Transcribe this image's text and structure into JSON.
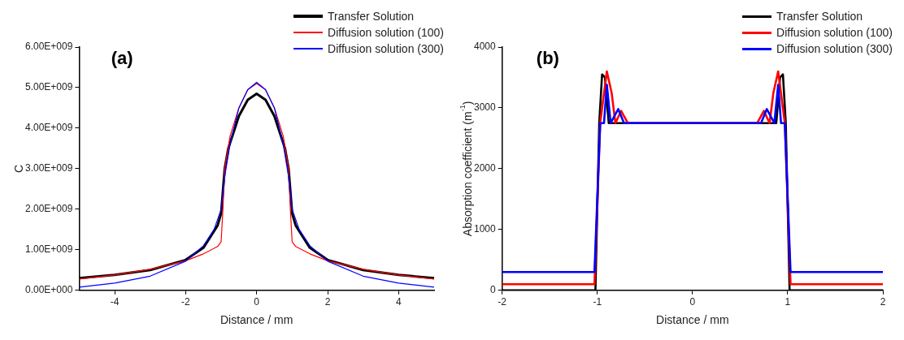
{
  "chart_data": [
    {
      "type": "line",
      "title": "(a)",
      "xlabel": "Distance / mm",
      "ylabel": "C",
      "legend": "top right",
      "grid": false,
      "marker": "none",
      "line_style": "solid",
      "xlim": [
        -5,
        5
      ],
      "xticks": [
        -4,
        -2,
        0,
        2,
        4
      ],
      "ylim": [
        0,
        6000000000.0
      ],
      "yticks": [
        {
          "value": 0,
          "label": "0.00E+000"
        },
        {
          "value": 1000000000.0,
          "label": "1.00E+009"
        },
        {
          "value": 2000000000.0,
          "label": "2.00E+009"
        },
        {
          "value": 3000000000.0,
          "label": "3.00E+009"
        },
        {
          "value": 4000000000.0,
          "label": "4.00E+009"
        },
        {
          "value": 5000000000.0,
          "label": "5.00E+009"
        },
        {
          "value": 6000000000.0,
          "label": "6.00E+009"
        }
      ],
      "series": [
        {
          "name": "Transfer Solution",
          "color": "#000000",
          "x": [
            -5,
            -4,
            -3,
            -2,
            -1.5,
            -1.1,
            -1,
            -0.9,
            -0.8,
            -0.5,
            -0.25,
            0,
            0.25,
            0.5,
            0.8,
            0.9,
            1,
            1.1,
            1.5,
            2,
            3,
            4,
            5
          ],
          "values": [
            300000000.0,
            380000000.0,
            500000000.0,
            750000000.0,
            1050000000.0,
            1600000000.0,
            1900000000.0,
            3000000000.0,
            3500000000.0,
            4300000000.0,
            4700000000.0,
            4850000000.0,
            4700000000.0,
            4300000000.0,
            3500000000.0,
            3000000000.0,
            1900000000.0,
            1600000000.0,
            1050000000.0,
            750000000.0,
            500000000.0,
            380000000.0,
            300000000.0
          ]
        },
        {
          "name": "Diffusion solution (100)",
          "color": "#ff0000",
          "x": [
            -5,
            -4,
            -3,
            -2,
            -1.5,
            -1.1,
            -1,
            -0.95,
            -0.9,
            -0.75,
            -0.5,
            -0.25,
            0,
            0.25,
            0.5,
            0.75,
            0.9,
            0.95,
            1,
            1.1,
            1.5,
            2,
            3,
            4,
            5
          ],
          "values": [
            280000000.0,
            380000000.0,
            520000000.0,
            730000000.0,
            900000000.0,
            1080000000.0,
            1200000000.0,
            2000000000.0,
            3000000000.0,
            3800000000.0,
            4500000000.0,
            4950000000.0,
            5100000000.0,
            4950000000.0,
            4500000000.0,
            3800000000.0,
            3000000000.0,
            2000000000.0,
            1200000000.0,
            1080000000.0,
            900000000.0,
            730000000.0,
            520000000.0,
            380000000.0,
            280000000.0
          ]
        },
        {
          "name": "Diffusion solution (300)",
          "color": "#0000ff",
          "x": [
            -5,
            -4,
            -3,
            -2,
            -1.5,
            -1.2,
            -1,
            -0.9,
            -0.75,
            -0.5,
            -0.25,
            0,
            0.25,
            0.5,
            0.75,
            0.9,
            1,
            1.2,
            1.5,
            2,
            3,
            4,
            5
          ],
          "values": [
            80000000.0,
            180000000.0,
            350000000.0,
            720000000.0,
            1100000000.0,
            1500000000.0,
            2000000000.0,
            2800000000.0,
            3600000000.0,
            4500000000.0,
            4950000000.0,
            5130000000.0,
            4950000000.0,
            4500000000.0,
            3600000000.0,
            2800000000.0,
            2000000000.0,
            1500000000.0,
            1100000000.0,
            720000000.0,
            350000000.0,
            180000000.0,
            80000000.0
          ]
        }
      ]
    },
    {
      "type": "line",
      "title": "(b)",
      "xlabel": "Distance / mm",
      "ylabel": "Absorption coefficient (m$^{-1}$)",
      "legend": "top right",
      "grid": false,
      "marker": "none",
      "line_style": "solid",
      "xlim": [
        -2,
        2
      ],
      "xticks": [
        -2,
        -1,
        0,
        1,
        2
      ],
      "ylim": [
        0,
        4000
      ],
      "yticks": [
        0,
        1000,
        2000,
        3000,
        4000
      ],
      "series": [
        {
          "name": "Transfer Solution",
          "color": "#000000",
          "x": [
            -2,
            -1.02,
            -0.98,
            -0.95,
            -0.92,
            -0.88,
            0.88,
            0.92,
            0.95,
            0.98,
            1.02,
            2
          ],
          "values": [
            0,
            0,
            2750,
            3550,
            3500,
            2750,
            2750,
            3500,
            3550,
            2750,
            0,
            0
          ]
        },
        {
          "name": "Diffusion solution (100)",
          "color": "#ff0000",
          "x": [
            -2,
            -1.03,
            -0.97,
            -0.9,
            -0.85,
            -0.81,
            -0.75,
            -0.68,
            0.68,
            0.75,
            0.81,
            0.85,
            0.9,
            0.97,
            1.03,
            2
          ],
          "values": [
            100,
            100,
            2750,
            3600,
            3250,
            2750,
            2950,
            2750,
            2750,
            2950,
            2750,
            3250,
            3600,
            2750,
            100,
            100
          ]
        },
        {
          "name": "Diffusion solution (300)",
          "color": "#0000ff",
          "x": [
            -2,
            -1.03,
            -0.97,
            -0.93,
            -0.9,
            -0.86,
            -0.78,
            -0.72,
            0.72,
            0.78,
            0.86,
            0.9,
            0.93,
            0.97,
            1.03,
            2
          ],
          "values": [
            300,
            300,
            2750,
            2750,
            3380,
            2750,
            2980,
            2750,
            2750,
            2980,
            2750,
            3380,
            2750,
            2750,
            300,
            300
          ]
        }
      ]
    }
  ]
}
